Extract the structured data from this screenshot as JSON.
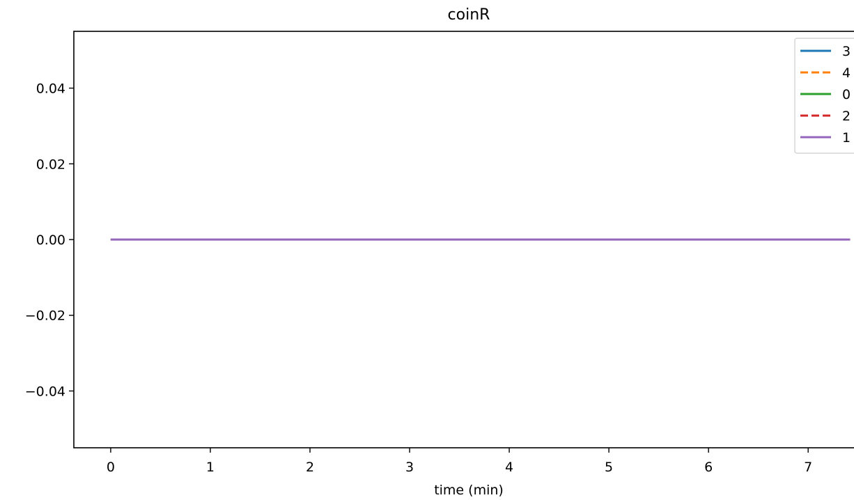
{
  "chart_data": {
    "type": "line",
    "title": "coinR",
    "xlabel": "time (min)",
    "ylabel": "",
    "xlim": [
      -0.37,
      7.6
    ],
    "ylim": [
      -0.055,
      0.055
    ],
    "xticks": [
      0,
      1,
      2,
      3,
      4,
      5,
      6,
      7
    ],
    "xtick_labels": [
      "0",
      "1",
      "2",
      "3",
      "4",
      "5",
      "6",
      "7"
    ],
    "yticks": [
      -0.04,
      -0.02,
      0.0,
      0.02,
      0.04
    ],
    "ytick_labels": [
      "−0.04",
      "−0.02",
      "0.00",
      "0.02",
      "0.04"
    ],
    "grid": false,
    "legend_position": "top-right",
    "series": [
      {
        "name": "3",
        "color": "#1f77b4",
        "dash": "solid",
        "x": [
          0,
          7.42
        ],
        "y": [
          0,
          0
        ]
      },
      {
        "name": "4",
        "color": "#ff7f0e",
        "dash": "dashed",
        "x": [
          0,
          7.42
        ],
        "y": [
          0,
          0
        ]
      },
      {
        "name": "0",
        "color": "#2ca02c",
        "dash": "solid",
        "x": [
          0,
          7.42
        ],
        "y": [
          0,
          0
        ]
      },
      {
        "name": "2",
        "color": "#d62728",
        "dash": "dashed",
        "x": [
          0,
          7.42
        ],
        "y": [
          0,
          0
        ]
      },
      {
        "name": "1",
        "color": "#9467bd",
        "dash": "solid",
        "x": [
          0,
          7.42
        ],
        "y": [
          0,
          0
        ]
      }
    ]
  }
}
